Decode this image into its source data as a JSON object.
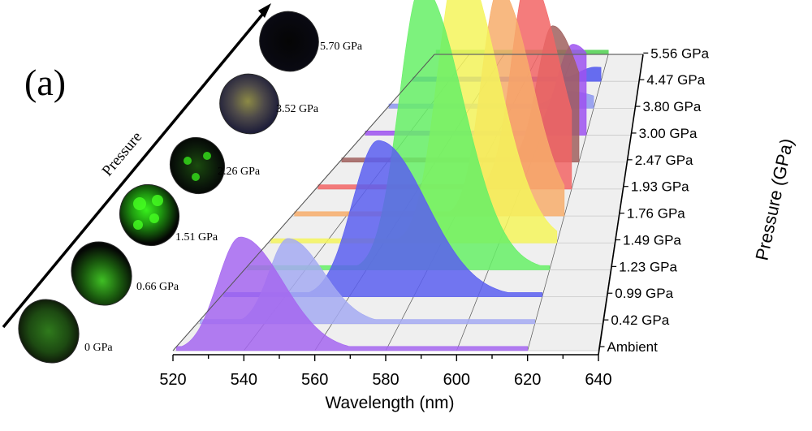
{
  "panel_label": "(a)",
  "inset": {
    "arrow_label": "Pressure",
    "images": [
      {
        "label": "0 GPa",
        "appearance": "dim green"
      },
      {
        "label": "0.66 GPa",
        "appearance": "green streak"
      },
      {
        "label": "1.51 GPa",
        "appearance": "bright green"
      },
      {
        "label": "2.26 GPa",
        "appearance": "green spots"
      },
      {
        "label": "3.52 GPa",
        "appearance": "faint yellow-green"
      },
      {
        "label": "5.70 GPa",
        "appearance": "dark"
      }
    ]
  },
  "chart_data": {
    "type": "area",
    "subtype": "3d-waterfall",
    "title": "",
    "xlabel": "Wavelength (nm)",
    "ylabel": "Pressure (GPa)",
    "xlim": [
      520,
      640
    ],
    "xticks": [
      "520",
      "540",
      "560",
      "580",
      "600",
      "620",
      "640"
    ],
    "grid": true,
    "series": [
      {
        "name": "Ambient",
        "peak_nm": 539,
        "relative_intensity": 0.4,
        "width_nm": 8,
        "color": "#a566f0"
      },
      {
        "name": "0.42 GPa",
        "peak_nm": 547,
        "relative_intensity": 0.3,
        "width_nm": 7,
        "color": "#a4aaf2"
      },
      {
        "name": "0.99 GPa",
        "peak_nm": 569,
        "relative_intensity": 0.55,
        "width_nm": 10,
        "color": "#5b5ff0"
      },
      {
        "name": "1.23 GPa",
        "peak_nm": 578,
        "relative_intensity": 1.0,
        "width_nm": 9,
        "color": "#66f066"
      },
      {
        "name": "1.49 GPa",
        "peak_nm": 586,
        "relative_intensity": 1.0,
        "width_nm": 9,
        "color": "#f5f55c"
      },
      {
        "name": "1.76 GPa",
        "peak_nm": 596,
        "relative_intensity": 0.8,
        "width_nm": 8,
        "color": "#f7ad6b"
      },
      {
        "name": "1.93 GPa",
        "peak_nm": 603,
        "relative_intensity": 0.75,
        "width_nm": 8,
        "color": "#f26565"
      },
      {
        "name": "2.47 GPa",
        "peak_nm": 609,
        "relative_intensity": 0.48,
        "width_nm": 8,
        "color": "#a0605e"
      },
      {
        "name": "3.00 GPa",
        "peak_nm": 614,
        "relative_intensity": 0.32,
        "width_nm": 9,
        "color": "#9d52f0"
      },
      {
        "name": "3.80 GPa",
        "peak_nm": 608,
        "relative_intensity": 0.06,
        "width_nm": 10,
        "color": "#8c96f0"
      },
      {
        "name": "4.47 GPa",
        "peak_nm": 617,
        "relative_intensity": 0.05,
        "width_nm": 11,
        "color": "#4e55ee"
      },
      {
        "name": "5.56 GPa",
        "peak_nm": 600,
        "relative_intensity": 0.0,
        "width_nm": 10,
        "color": "#4fd04f"
      }
    ]
  }
}
